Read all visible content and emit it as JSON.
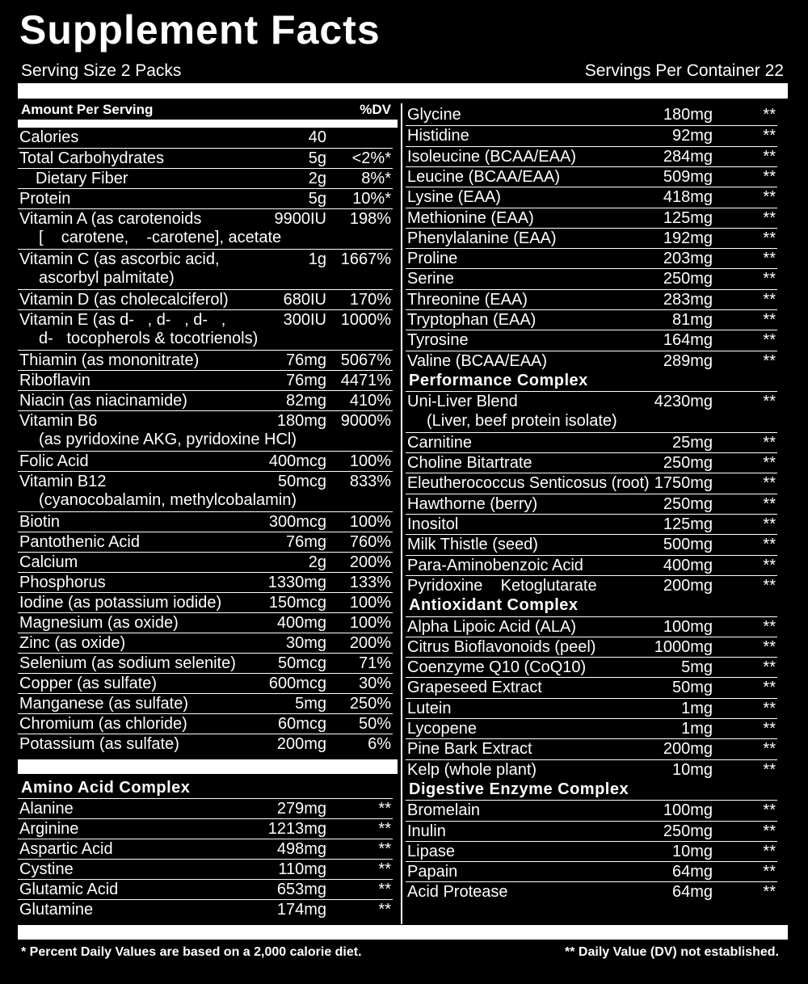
{
  "title": "Supplement Facts",
  "serving_size": "Serving Size 2 Packs",
  "servings_per_container": "Servings Per Container 22",
  "left_column": {
    "header": {
      "amount": "Amount Per Serving",
      "dv": "%DV"
    },
    "sections": [
      {
        "rows": [
          {
            "name": "Calories",
            "amount": "40",
            "dv": ""
          },
          {
            "name": "Total Carbohydrates",
            "amount": "5g",
            "dv": "<2%*"
          },
          {
            "name": "Dietary Fiber",
            "amount": "2g",
            "dv": "8%*",
            "indent": true
          },
          {
            "name": "Protein",
            "amount": "5g",
            "dv": "10%*"
          },
          {
            "name": "Vitamin A (as carotenoids",
            "amount": "9900IU",
            "dv": "198%",
            "note": "[    carotene,    -carotene], acetate"
          },
          {
            "name": "Vitamin C (as ascorbic acid,",
            "amount": "1g",
            "dv": "1667%",
            "note": "ascorbyl palmitate)"
          },
          {
            "name": "Vitamin D (as cholecalciferol)",
            "amount": "680IU",
            "dv": "170%"
          },
          {
            "name": "Vitamin E (as d-   , d-   , d-   ,",
            "amount": "300IU",
            "dv": "1000%",
            "note": "d-   tocopherols & tocotrienols)"
          },
          {
            "name": "Thiamin (as mononitrate)",
            "amount": "76mg",
            "dv": "5067%"
          },
          {
            "name": "Riboflavin",
            "amount": "76mg",
            "dv": "4471%"
          },
          {
            "name": "Niacin (as niacinamide)",
            "amount": "82mg",
            "dv": "410%"
          },
          {
            "name": "Vitamin B6",
            "amount": "180mg",
            "dv": "9000%",
            "note": "(as pyridoxine AKG, pyridoxine HCl)"
          },
          {
            "name": "Folic Acid",
            "amount": "400mcg",
            "dv": "100%"
          },
          {
            "name": "Vitamin B12",
            "amount": "50mcg",
            "dv": "833%",
            "note": "(cyanocobalamin, methylcobalamin)"
          },
          {
            "name": "Biotin",
            "amount": "300mcg",
            "dv": "100%"
          },
          {
            "name": "Pantothenic Acid",
            "amount": "76mg",
            "dv": "760%"
          },
          {
            "name": "Calcium",
            "amount": "2g",
            "dv": "200%"
          },
          {
            "name": "Phosphorus",
            "amount": "1330mg",
            "dv": "133%"
          },
          {
            "name": "Iodine (as potassium iodide)",
            "amount": "150mcg",
            "dv": "100%"
          },
          {
            "name": "Magnesium (as oxide)",
            "amount": "400mg",
            "dv": "100%"
          },
          {
            "name": "Zinc (as oxide)",
            "amount": "30mg",
            "dv": "200%"
          },
          {
            "name": "Selenium (as sodium selenite)",
            "amount": "50mcg",
            "dv": "71%"
          },
          {
            "name": "Copper (as sulfate)",
            "amount": "600mcg",
            "dv": "30%"
          },
          {
            "name": "Manganese (as sulfate)",
            "amount": "5mg",
            "dv": "250%"
          },
          {
            "name": "Chromium (as chloride)",
            "amount": "60mcg",
            "dv": "50%"
          },
          {
            "name": "Potassium (as sulfate)",
            "amount": "200mg",
            "dv": "6%"
          }
        ]
      },
      {
        "title": "Amino Acid Complex",
        "rows": [
          {
            "name": "Alanine",
            "amount": "279mg",
            "dv": "**"
          },
          {
            "name": "Arginine",
            "amount": "1213mg",
            "dv": "**"
          },
          {
            "name": "Aspartic Acid",
            "amount": "498mg",
            "dv": "**"
          },
          {
            "name": "Cystine",
            "amount": "110mg",
            "dv": "**"
          },
          {
            "name": "Glutamic Acid",
            "amount": "653mg",
            "dv": "**"
          },
          {
            "name": "Glutamine",
            "amount": "174mg",
            "dv": "**"
          }
        ]
      }
    ]
  },
  "right_column": {
    "sections": [
      {
        "rows": [
          {
            "name": "Glycine",
            "amount": "180mg",
            "dv": "**"
          },
          {
            "name": "Histidine",
            "amount": "92mg",
            "dv": "**"
          },
          {
            "name": "Isoleucine (BCAA/EAA)",
            "amount": "284mg",
            "dv": "**"
          },
          {
            "name": "Leucine (BCAA/EAA)",
            "amount": "509mg",
            "dv": "**"
          },
          {
            "name": "Lysine (EAA)",
            "amount": "418mg",
            "dv": "**"
          },
          {
            "name": "Methionine (EAA)",
            "amount": "125mg",
            "dv": "**"
          },
          {
            "name": "Phenylalanine (EAA)",
            "amount": "192mg",
            "dv": "**"
          },
          {
            "name": "Proline",
            "amount": "203mg",
            "dv": "**"
          },
          {
            "name": "Serine",
            "amount": "250mg",
            "dv": "**"
          },
          {
            "name": "Threonine (EAA)",
            "amount": "283mg",
            "dv": "**"
          },
          {
            "name": "Tryptophan (EAA)",
            "amount": "81mg",
            "dv": "**"
          },
          {
            "name": "Tyrosine",
            "amount": "164mg",
            "dv": "**"
          },
          {
            "name": "Valine (BCAA/EAA)",
            "amount": "289mg",
            "dv": "**"
          }
        ]
      },
      {
        "title": "Performance Complex",
        "rows": [
          {
            "name": "Uni-Liver Blend",
            "amount": "4230mg",
            "dv": "**",
            "note": "(Liver, beef protein isolate)"
          },
          {
            "name": "Carnitine",
            "amount": "25mg",
            "dv": "**"
          },
          {
            "name": "Choline Bitartrate",
            "amount": "250mg",
            "dv": "**"
          },
          {
            "name": "Eleutherococcus Senticosus (root)",
            "amount": "1750mg",
            "dv": "**"
          },
          {
            "name": "Hawthorne (berry)",
            "amount": "250mg",
            "dv": "**"
          },
          {
            "name": "Inositol",
            "amount": "125mg",
            "dv": "**"
          },
          {
            "name": "Milk Thistle (seed)",
            "amount": "500mg",
            "dv": "**"
          },
          {
            "name": "Para-Aminobenzoic Acid",
            "amount": "400mg",
            "dv": "**"
          },
          {
            "name": "Pyridoxine    Ketoglutarate",
            "amount": "200mg",
            "dv": "**"
          }
        ]
      },
      {
        "title": "Antioxidant Complex",
        "rows": [
          {
            "name": "Alpha Lipoic Acid (ALA)",
            "amount": "100mg",
            "dv": "**"
          },
          {
            "name": "Citrus Bioflavonoids (peel)",
            "amount": "1000mg",
            "dv": "**"
          },
          {
            "name": "Coenzyme Q10 (CoQ10)",
            "amount": "5mg",
            "dv": "**"
          },
          {
            "name": "Grapeseed Extract",
            "amount": "50mg",
            "dv": "**"
          },
          {
            "name": "Lutein",
            "amount": "1mg",
            "dv": "**"
          },
          {
            "name": "Lycopene",
            "amount": "1mg",
            "dv": "**"
          },
          {
            "name": "Pine Bark Extract",
            "amount": "200mg",
            "dv": "**"
          },
          {
            "name": "Kelp (whole plant)",
            "amount": "10mg",
            "dv": "**"
          }
        ]
      },
      {
        "title": "Digestive Enzyme Complex",
        "rows": [
          {
            "name": "Bromelain",
            "amount": "100mg",
            "dv": "**"
          },
          {
            "name": "Inulin",
            "amount": "250mg",
            "dv": "**"
          },
          {
            "name": "Lipase",
            "amount": "10mg",
            "dv": "**"
          },
          {
            "name": "Papain",
            "amount": "64mg",
            "dv": "**"
          },
          {
            "name": "Acid Protease",
            "amount": "64mg",
            "dv": "**"
          }
        ]
      }
    ]
  },
  "footer": {
    "left": "* Percent Daily Values are based on a 2,000 calorie diet.",
    "right": "** Daily Value (DV) not established."
  }
}
